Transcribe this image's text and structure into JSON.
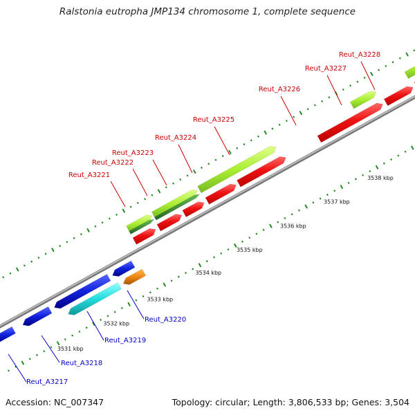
{
  "title": "Ralstonia eutropha JMP134 chromosome 1, complete sequence",
  "footer": {
    "accession": "Accession: NC_007347",
    "summary": "Topology: circular; Length: 3,806,533 bp; Genes: 3,504"
  },
  "kbp_labels": [
    "3531 kbp",
    "3532 kbp",
    "3533 kbp",
    "3534 kbp",
    "3535 kbp",
    "3536 kbp",
    "3537 kbp",
    "3538 kbp"
  ],
  "forward_genes": [
    "Reut_A3221",
    "Reut_A3222",
    "Reut_A3223",
    "Reut_A3224",
    "Reut_A3225",
    "Reut_A3226",
    "Reut_A3227",
    "Reut_A3228"
  ],
  "reverse_genes": [
    "Reut_A3217",
    "Reut_A3218",
    "Reut_A3219",
    "Reut_A3220"
  ],
  "colors": {
    "forward_label": "#cc0000",
    "reverse_label": "#0000cc",
    "cds_red": "#ee1111",
    "cds_green_light": "#aaee33",
    "cds_green_dark": "#338833",
    "cds_blue": "#1122dd",
    "cds_cyan": "#22dddd",
    "cds_orange": "#ee8811",
    "backbone": "#999999",
    "tick": "#228822"
  }
}
